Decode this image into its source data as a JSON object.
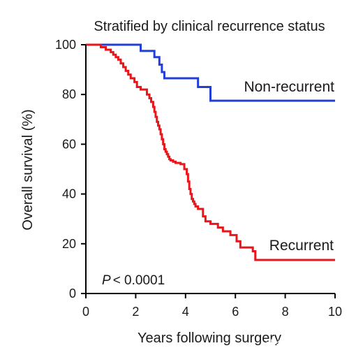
{
  "chart_data": {
    "type": "line",
    "title": "Stratified by clinical recurrence status",
    "xlabel": "Years following surgery",
    "ylabel": "Overall survival (%)",
    "xlim": [
      0,
      10
    ],
    "ylim": [
      0,
      100
    ],
    "xticks": [
      0,
      2,
      4,
      6,
      8,
      10
    ],
    "yticks": [
      0,
      20,
      40,
      60,
      80,
      100
    ],
    "grid": false,
    "legend": "inline labels",
    "annotation": {
      "p_symbol": "P",
      "p_text": "< 0.0001"
    },
    "watermark": "头条号 / 美中嘉和",
    "series": [
      {
        "name": "Non-recurrent",
        "color": "#1f3fd6",
        "step": true,
        "x": [
          0,
          1.4,
          2.2,
          2.75,
          2.95,
          3.05,
          3.15,
          4.5,
          5.0,
          10
        ],
        "y": [
          100,
          100,
          97.5,
          95,
          92,
          89,
          86.5,
          83,
          77.5,
          77.5
        ]
      },
      {
        "name": "Recurrent",
        "color": "#e8151b",
        "step": true,
        "x": [
          0,
          0.6,
          0.8,
          1.0,
          1.1,
          1.2,
          1.3,
          1.4,
          1.5,
          1.6,
          1.7,
          1.8,
          1.95,
          2.05,
          2.2,
          2.45,
          2.55,
          2.62,
          2.7,
          2.75,
          2.8,
          2.85,
          2.9,
          2.95,
          3.0,
          3.05,
          3.1,
          3.15,
          3.2,
          3.25,
          3.3,
          3.35,
          3.4,
          3.5,
          3.6,
          3.8,
          3.95,
          4.05,
          4.1,
          4.15,
          4.2,
          4.25,
          4.3,
          4.35,
          4.4,
          4.5,
          4.7,
          4.8,
          5.0,
          5.3,
          5.5,
          5.8,
          6.05,
          6.2,
          6.7,
          6.8,
          10
        ],
        "y": [
          100,
          99,
          98,
          97,
          96,
          95,
          94,
          92.5,
          91,
          89.5,
          88,
          86.5,
          85,
          83,
          82,
          80,
          78.5,
          77,
          75,
          73,
          71,
          69,
          67.5,
          66,
          64,
          62,
          60,
          58,
          57,
          56,
          55,
          54,
          53.5,
          53,
          52.5,
          52,
          50,
          48,
          45,
          42,
          40,
          38,
          37,
          36,
          35,
          34,
          31,
          29,
          28,
          26.5,
          25,
          23.5,
          21,
          18.5,
          17,
          13.5,
          13.5
        ]
      }
    ]
  }
}
